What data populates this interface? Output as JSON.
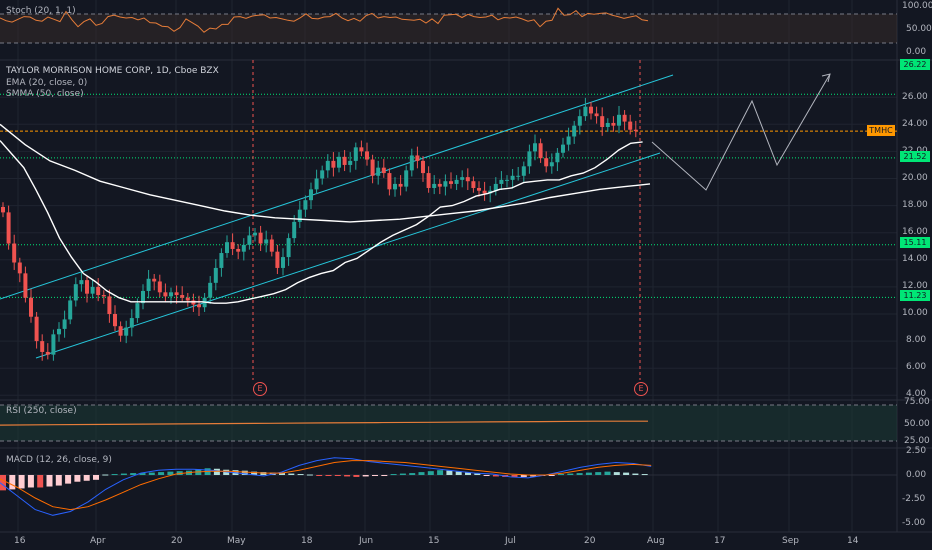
{
  "window": {
    "background": "#131722"
  },
  "stoch_panel": {
    "label": "Stoch (20, 1, 1)",
    "ticks": [
      "100.00",
      "50.00",
      "0.00"
    ]
  },
  "main_panel": {
    "title": "TAYLOR MORRISON HOME CORP, 1D, Cboe BZX",
    "ema_label": "EMA (20, close, 0)",
    "smma_label": "SMMA (50, close)",
    "ticks": [
      "26.00",
      "24.00",
      "22.00",
      "20.00",
      "18.00",
      "16.00",
      "14.00",
      "12.00",
      "10.00",
      "8.00",
      "6.00",
      "4.00"
    ],
    "price_tags": {
      "t26": "26.22",
      "symbol": "TMHC",
      "t21": "21.52",
      "t15": "15.11",
      "t11": "11.23"
    },
    "earnings_marker": "E"
  },
  "rsi_panel": {
    "label": "RSI (250, close)",
    "ticks": [
      "75.00",
      "50.00",
      "25.00"
    ]
  },
  "macd_panel": {
    "label": "MACD (12, 26, close, 9)",
    "ticks": [
      "2.50",
      "0.00",
      "-2.50",
      "-5.00"
    ]
  },
  "x_axis": {
    "labels": [
      "16",
      "Apr",
      "20",
      "May",
      "18",
      "Jun",
      "15",
      "Jul",
      "20",
      "Aug",
      "17",
      "Sep",
      "14"
    ]
  },
  "colors": {
    "up": "#26a69a",
    "down": "#ef5350",
    "ema": "#ffffff",
    "smma": "#ffffff",
    "channel": "#26c6da",
    "stoch": "#e57c39",
    "symbol_tag": "#ff9800",
    "level_tag": "#00e676"
  },
  "chart_data": [
    {
      "type": "candlestick",
      "title": "TAYLOR MORRISON HOME CORP, 1D, Cboe BZX",
      "x_labels": [
        "16",
        "Apr",
        "20",
        "May",
        "18",
        "Jun",
        "15",
        "Jul",
        "20",
        "Aug",
        "17",
        "Sep",
        "14"
      ],
      "ylim": [
        4,
        28
      ],
      "series": [
        {
          "name": "TMHC",
          "values": [
            17.5,
            15.2,
            13.8,
            13.0,
            11.2,
            9.8,
            8.0,
            7.2,
            7.0,
            8.5,
            8.9,
            9.6,
            11.0,
            12.2,
            12.5,
            11.5,
            12.0,
            11.4,
            11.3,
            10.0,
            9.1,
            8.4,
            9.0,
            9.7,
            10.8,
            11.7,
            12.6,
            12.4,
            11.6,
            11.3,
            11.6,
            11.4,
            11.2,
            11.0,
            10.7,
            10.5,
            11.2,
            12.3,
            13.4,
            14.5,
            15.3,
            14.8,
            14.6,
            15.1,
            15.8,
            16.0,
            15.2,
            15.5,
            14.6,
            13.4,
            14.2,
            15.6,
            16.8,
            17.7,
            18.4,
            19.2,
            20.0,
            20.6,
            21.3,
            20.8,
            21.6,
            21.0,
            21.3,
            22.3,
            22.0,
            21.4,
            20.2,
            20.8,
            20.4,
            19.2,
            19.6,
            19.4,
            20.6,
            21.7,
            21.3,
            20.4,
            19.3,
            19.6,
            19.4,
            19.8,
            19.6,
            19.9,
            20.1,
            19.8,
            19.3,
            19.1,
            18.9,
            19.1,
            19.6,
            19.9,
            19.9,
            20.2,
            20.2,
            20.9,
            22.0,
            22.6,
            21.5,
            20.9,
            21.2,
            21.9,
            22.5,
            23.1,
            23.9,
            24.6,
            25.3,
            24.8,
            24.6,
            23.8,
            24.1,
            23.9,
            24.7,
            24.2,
            23.6,
            23.5
          ]
        },
        {
          "name": "EMA (20, close, 0)",
          "values": [
            22.8,
            21.8,
            20.8,
            19.2,
            17.5,
            15.6,
            14.2,
            13.0,
            12.4,
            11.7,
            11.2,
            10.9,
            10.9,
            10.9,
            10.9,
            10.9,
            10.9,
            10.9,
            10.8,
            10.8,
            10.9,
            11.1,
            11.3,
            11.5,
            11.8,
            12.3,
            12.7,
            13.0,
            13.2,
            13.8,
            14.1,
            14.7,
            15.3,
            15.8,
            16.2,
            16.6,
            17.2,
            17.9,
            18.0,
            18.3,
            18.7,
            18.9,
            19.2,
            19.3,
            19.7,
            19.8,
            19.9,
            19.9,
            20.2,
            20.4,
            20.8,
            21.4,
            22.1,
            22.6,
            22.7
          ]
        },
        {
          "name": "SMMA (50, close)",
          "values": [
            24.0,
            22.5,
            21.3,
            20.6,
            19.8,
            19.3,
            18.8,
            18.4,
            18.0,
            17.6,
            17.3,
            17.1,
            17.0,
            16.9,
            16.8,
            16.9,
            17.0,
            17.2,
            17.4,
            17.6,
            17.9,
            18.2,
            18.6,
            18.9,
            19.2,
            19.4,
            19.6
          ]
        },
        {
          "name": "Stoch (20, 1, 1)",
          "values": [
            74,
            68,
            65,
            71,
            77,
            76,
            69,
            67,
            76,
            71,
            66,
            88,
            70,
            55,
            66,
            72,
            58,
            62,
            77,
            80,
            76,
            74,
            75,
            70,
            74,
            64,
            63,
            56,
            55,
            45,
            53,
            72,
            64,
            56,
            43,
            52,
            50,
            60,
            60,
            76,
            77,
            73,
            78,
            80,
            81,
            74,
            75,
            72,
            69,
            67,
            74,
            83,
            73,
            72,
            76,
            77,
            84,
            74,
            68,
            73,
            67,
            79,
            84,
            74,
            77,
            75,
            76,
            71,
            70,
            69,
            71,
            63,
            72,
            62,
            80,
            81,
            82,
            75,
            82,
            77,
            75,
            76,
            80,
            70,
            75,
            74,
            76,
            72,
            67,
            70,
            55,
            67,
            69,
            95,
            80,
            81,
            90,
            77,
            84,
            82,
            84,
            85,
            80,
            77,
            73,
            76,
            79,
            70,
            68
          ]
        },
        {
          "name": "RSI (250, close)",
          "values": [
            48.5,
            49,
            49.5,
            50,
            50.5,
            51,
            51.5,
            52,
            52.5,
            53,
            53.5,
            54,
            54
          ]
        },
        {
          "name": "MACD (12, 26, close, 9)",
          "values": [
            -0.8,
            -2.2,
            -3.6,
            -4.2,
            -3.8,
            -2.8,
            -1.5,
            -0.5,
            0.2,
            0.5,
            0.6,
            0.6,
            0.5,
            0.3,
            0.1,
            -0.1,
            0.3,
            1.0,
            1.5,
            1.8,
            1.7,
            1.4,
            1.2,
            1.0,
            0.8,
            0.6,
            0.4,
            0.2,
            0.1,
            -0.2,
            -0.3,
            0.0,
            0.4,
            0.8,
            1.1,
            1.3,
            1.2,
            0.9
          ]
        },
        {
          "name": "MACD signal",
          "values": [
            -0.4,
            -1.3,
            -2.4,
            -3.3,
            -3.6,
            -3.3,
            -2.6,
            -1.8,
            -1.0,
            -0.4,
            0.1,
            0.3,
            0.4,
            0.4,
            0.3,
            0.2,
            0.2,
            0.5,
            0.9,
            1.3,
            1.5,
            1.5,
            1.4,
            1.3,
            1.1,
            0.9,
            0.7,
            0.5,
            0.3,
            0.1,
            0.0,
            0.0,
            0.2,
            0.5,
            0.8,
            1.0,
            1.1,
            1.0
          ]
        },
        {
          "name": "MACD histogram",
          "values": [
            -1.6,
            -1.5,
            -1.4,
            -1.3,
            -1.3,
            -1.2,
            -1.1,
            -0.9,
            -0.7,
            -0.6,
            -0.5,
            0.05,
            0.1,
            0.15,
            0.2,
            0.2,
            0.25,
            0.3,
            0.35,
            0.4,
            0.45,
            0.6,
            0.7,
            0.65,
            0.55,
            0.5,
            0.45,
            0.35,
            0.3,
            0.25,
            0.2,
            0.15,
            0.1,
            0.05,
            -0.05,
            -0.1,
            -0.1,
            -0.15,
            -0.2,
            -0.15,
            -0.1,
            -0.05,
            0.1,
            0.15,
            0.2,
            0.3,
            0.4,
            0.5,
            0.45,
            0.35,
            0.25,
            0.15,
            -0.1,
            -0.15,
            -0.2,
            -0.25,
            -0.2,
            -0.15,
            -0.1,
            -0.05,
            0.1,
            0.15,
            0.2,
            0.25,
            0.3,
            0.35,
            0.3,
            0.25,
            0.15,
            0.1
          ]
        }
      ]
    }
  ]
}
